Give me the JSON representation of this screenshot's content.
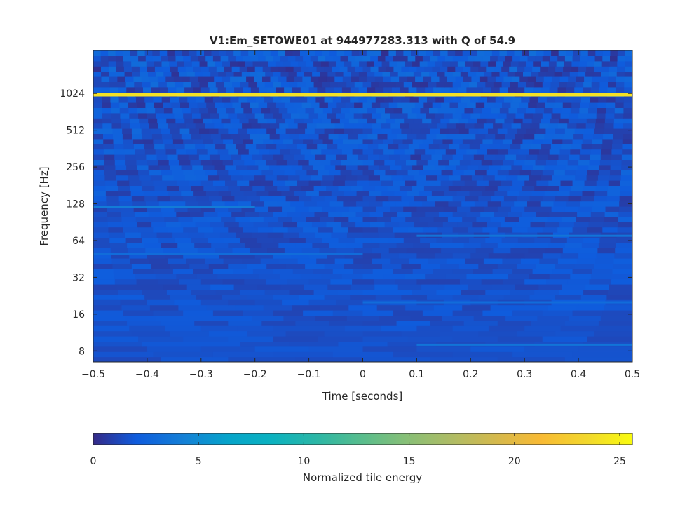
{
  "chart_data": {
    "type": "heatmap",
    "title": "V1:Em_SETOWE01 at 944977283.313 with Q of 54.9",
    "xlabel": "Time [seconds]",
    "ylabel": "Frequency [Hz]",
    "xlim": [
      -0.5,
      0.5
    ],
    "y_scale": "log2",
    "ylim": [
      6.5,
      2300
    ],
    "x_ticks": [
      -0.5,
      -0.4,
      -0.3,
      -0.2,
      -0.1,
      0,
      0.1,
      0.2,
      0.3,
      0.4,
      0.5
    ],
    "x_tick_labels": [
      "−0.5",
      "−0.4",
      "−0.3",
      "−0.2",
      "−0.1",
      "0",
      "0.1",
      "0.2",
      "0.3",
      "0.4",
      "0.5"
    ],
    "y_ticks": [
      8,
      16,
      32,
      64,
      128,
      256,
      512,
      1024
    ],
    "y_tick_labels": [
      "8",
      "16",
      "32",
      "64",
      "128",
      "256",
      "512",
      "1024"
    ],
    "colorbar": {
      "label": "Normalized tile energy",
      "range": [
        0,
        25.6
      ],
      "ticks": [
        0,
        5,
        10,
        15,
        20,
        25
      ],
      "tick_labels": [
        "0",
        "5",
        "10",
        "15",
        "20",
        "25"
      ],
      "colormap": "parula",
      "placement": "bottom"
    },
    "background_energy": 1.5,
    "features": [
      {
        "kind": "horizontal-line",
        "frequency_hz": 1000,
        "energy": 24,
        "time_range": [
          -0.5,
          0.5
        ]
      },
      {
        "kind": "horizontal-line",
        "frequency_hz": 120,
        "energy": 4,
        "time_range": [
          -0.5,
          -0.2
        ]
      },
      {
        "kind": "horizontal-line",
        "frequency_hz": 70,
        "energy": 3.5,
        "time_range": [
          0.1,
          0.5
        ]
      },
      {
        "kind": "horizontal-line",
        "frequency_hz": 9,
        "energy": 3.5,
        "time_range": [
          0.1,
          0.5
        ]
      },
      {
        "kind": "horizontal-line",
        "frequency_hz": 20,
        "energy": 3,
        "time_range": [
          0.0,
          0.5
        ]
      },
      {
        "kind": "horizontal-line",
        "frequency_hz": 50,
        "energy": 3,
        "time_range": [
          -0.5,
          0.0
        ]
      }
    ],
    "colors": {
      "axes": "#262626",
      "background": "#ffffff"
    }
  }
}
